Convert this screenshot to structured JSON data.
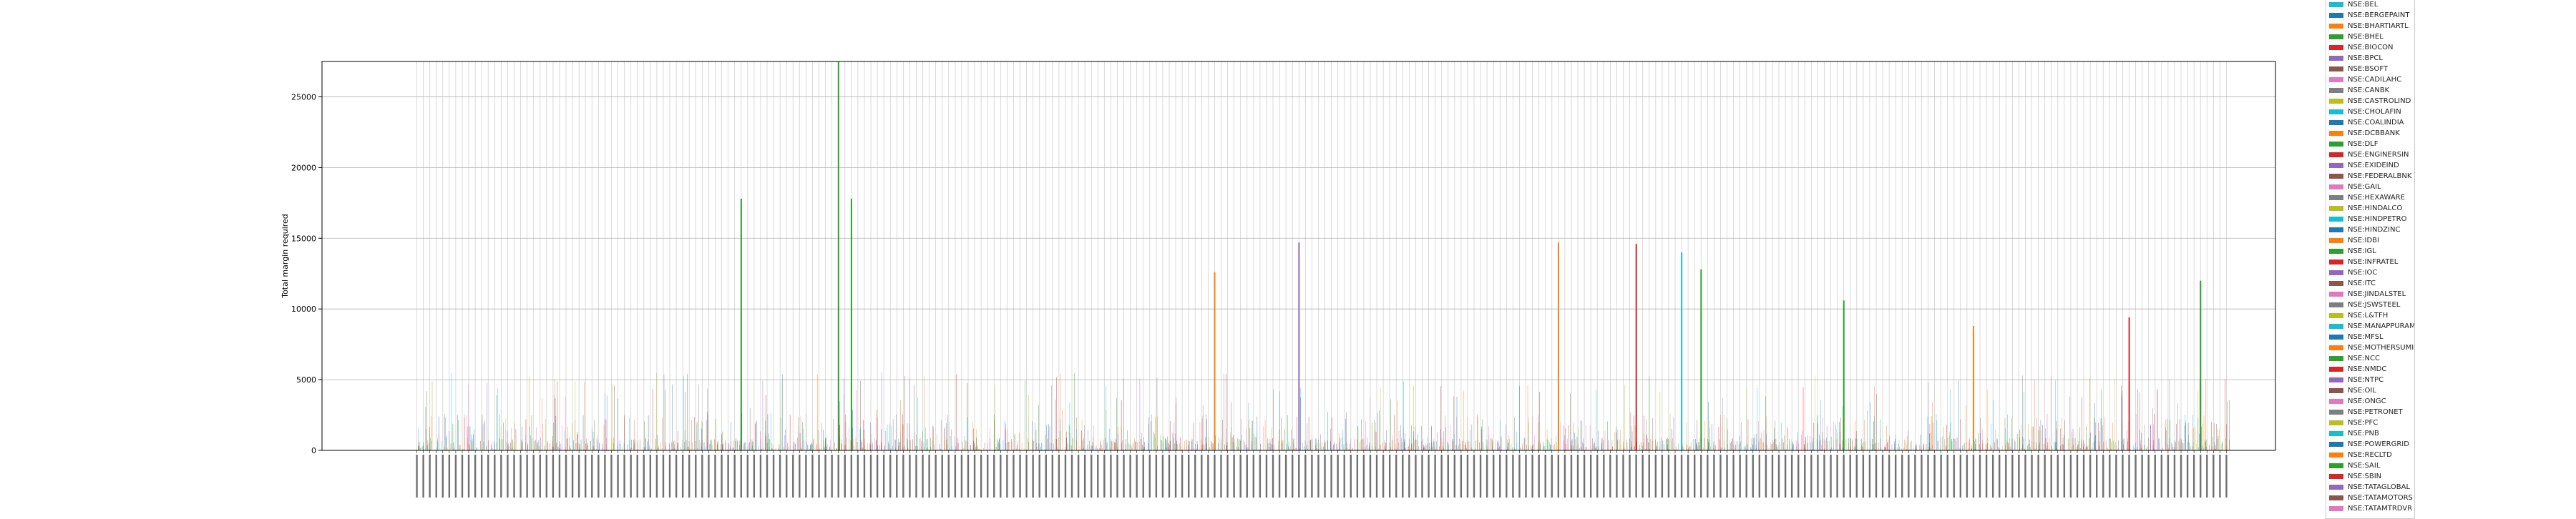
{
  "chart_data": {
    "type": "bar",
    "title": "",
    "xlabel": "",
    "ylabel": "Total margin required",
    "ylim": [
      0,
      27500
    ],
    "yticks": [
      0,
      5000,
      10000,
      15000,
      20000,
      25000
    ],
    "grid": true,
    "category_count": 280,
    "categories_note_hidden": true,
    "legend_position": "right",
    "series": [
      {
        "name": "NSE:BEL",
        "color": "#17becf"
      },
      {
        "name": "NSE:BERGEPAINT",
        "color": "#1f77b4"
      },
      {
        "name": "NSE:BHARTIARTL",
        "color": "#ff7f0e"
      },
      {
        "name": "NSE:BHEL",
        "color": "#2ca02c"
      },
      {
        "name": "NSE:BIOCON",
        "color": "#d62728"
      },
      {
        "name": "NSE:BPCL",
        "color": "#9467bd"
      },
      {
        "name": "NSE:BSOFT",
        "color": "#8c564b"
      },
      {
        "name": "NSE:CADILAHC",
        "color": "#e377c2"
      },
      {
        "name": "NSE:CANBK",
        "color": "#7f7f7f"
      },
      {
        "name": "NSE:CASTROLIND",
        "color": "#bcbd22"
      },
      {
        "name": "NSE:CHOLAFIN",
        "color": "#17becf"
      },
      {
        "name": "NSE:COALINDIA",
        "color": "#1f77b4"
      },
      {
        "name": "NSE:DCBBANK",
        "color": "#ff7f0e"
      },
      {
        "name": "NSE:DLF",
        "color": "#2ca02c"
      },
      {
        "name": "NSE:ENGINERSIN",
        "color": "#d62728"
      },
      {
        "name": "NSE:EXIDEIND",
        "color": "#9467bd"
      },
      {
        "name": "NSE:FEDERALBNK",
        "color": "#8c564b"
      },
      {
        "name": "NSE:GAIL",
        "color": "#e377c2"
      },
      {
        "name": "NSE:HEXAWARE",
        "color": "#7f7f7f"
      },
      {
        "name": "NSE:HINDALCO",
        "color": "#bcbd22"
      },
      {
        "name": "NSE:HINDPETRO",
        "color": "#17becf"
      },
      {
        "name": "NSE:HINDZINC",
        "color": "#1f77b4"
      },
      {
        "name": "NSE:IDBI",
        "color": "#ff7f0e"
      },
      {
        "name": "NSE:IGL",
        "color": "#2ca02c"
      },
      {
        "name": "NSE:INFRATEL",
        "color": "#d62728"
      },
      {
        "name": "NSE:IOC",
        "color": "#9467bd"
      },
      {
        "name": "NSE:ITC",
        "color": "#8c564b"
      },
      {
        "name": "NSE:JINDALSTEL",
        "color": "#e377c2"
      },
      {
        "name": "NSE:JSWSTEEL",
        "color": "#7f7f7f"
      },
      {
        "name": "NSE:L&TFH",
        "color": "#bcbd22"
      },
      {
        "name": "NSE:MANAPPURAM",
        "color": "#17becf"
      },
      {
        "name": "NSE:MFSL",
        "color": "#1f77b4"
      },
      {
        "name": "NSE:MOTHERSUMI",
        "color": "#ff7f0e"
      },
      {
        "name": "NSE:NCC",
        "color": "#2ca02c"
      },
      {
        "name": "NSE:NMDC",
        "color": "#d62728"
      },
      {
        "name": "NSE:NTPC",
        "color": "#9467bd"
      },
      {
        "name": "NSE:OIL",
        "color": "#8c564b"
      },
      {
        "name": "NSE:ONGC",
        "color": "#e377c2"
      },
      {
        "name": "NSE:PETRONET",
        "color": "#7f7f7f"
      },
      {
        "name": "NSE:PFC",
        "color": "#bcbd22"
      },
      {
        "name": "NSE:PNB",
        "color": "#17becf"
      },
      {
        "name": "NSE:POWERGRID",
        "color": "#1f77b4"
      },
      {
        "name": "NSE:RECLTD",
        "color": "#ff7f0e"
      },
      {
        "name": "NSE:SAIL",
        "color": "#2ca02c"
      },
      {
        "name": "NSE:SBIN",
        "color": "#d62728"
      },
      {
        "name": "NSE:TATAGLOBAL",
        "color": "#9467bd"
      },
      {
        "name": "NSE:TATAMOTORS",
        "color": "#8c564b"
      },
      {
        "name": "NSE:TATAMTRDVR",
        "color": "#e377c2"
      }
    ],
    "peaks": [
      {
        "category_index": 50,
        "value": 17800,
        "series": "NSE:BHEL"
      },
      {
        "category_index": 65,
        "value": 27500,
        "series": "NSE:BHEL"
      },
      {
        "category_index": 67,
        "value": 17800,
        "series": "NSE:BHEL"
      },
      {
        "category_index": 123,
        "value": 12600,
        "series": "NSE:BHARTIARTL"
      },
      {
        "category_index": 136,
        "value": 14700,
        "series": "NSE:BPCL"
      },
      {
        "category_index": 176,
        "value": 14700,
        "series": "NSE:BHARTIARTL"
      },
      {
        "category_index": 188,
        "value": 14600,
        "series": "NSE:BIOCON"
      },
      {
        "category_index": 195,
        "value": 14000,
        "series": "NSE:BEL"
      },
      {
        "category_index": 198,
        "value": 12800,
        "series": "NSE:BHEL"
      },
      {
        "category_index": 220,
        "value": 10600,
        "series": "NSE:BHEL"
      },
      {
        "category_index": 240,
        "value": 8800,
        "series": "NSE:BHARTIARTL"
      },
      {
        "category_index": 264,
        "value": 9400,
        "series": "NSE:BIOCON"
      },
      {
        "category_index": 275,
        "value": 12000,
        "series": "NSE:BHEL"
      }
    ]
  }
}
